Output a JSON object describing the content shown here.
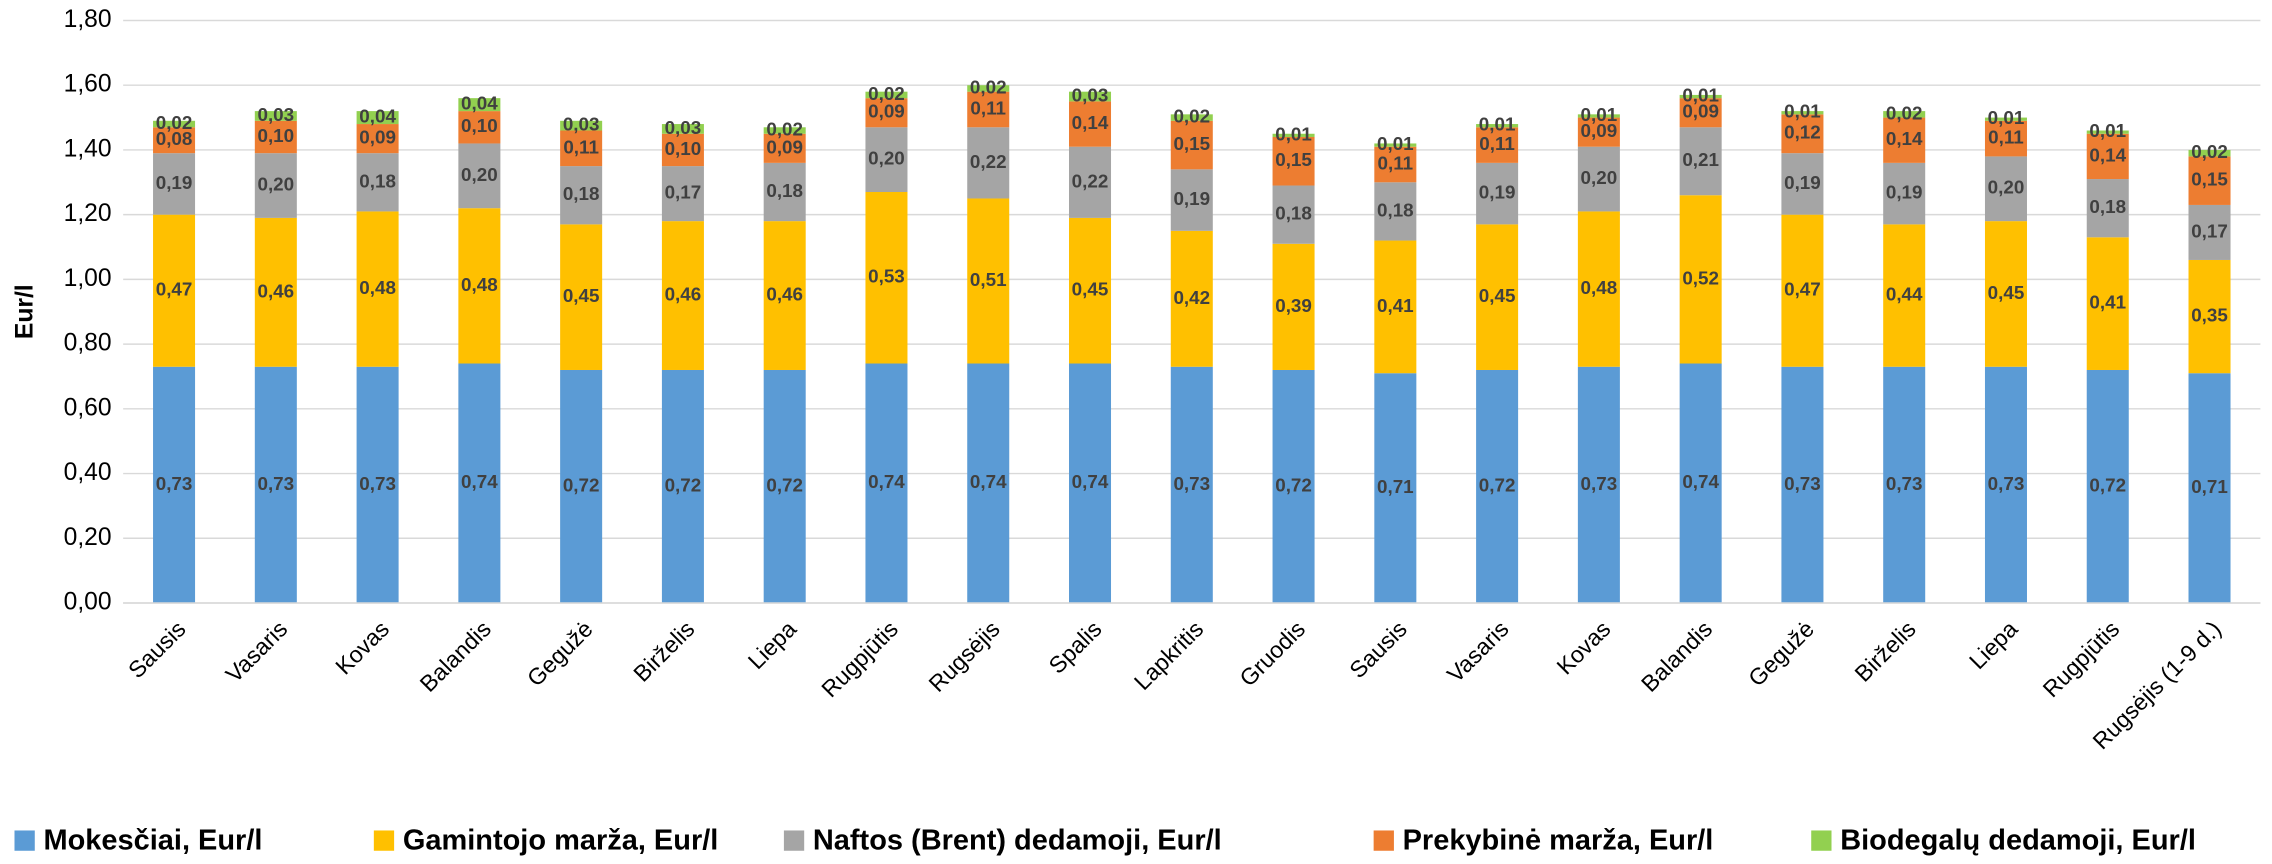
{
  "chart_data": {
    "type": "stacked-bar",
    "y_label": "Eur/l",
    "categories": [
      "Sausis",
      "Vasaris",
      "Kovas",
      "Balandis",
      "Gegužė",
      "Birželis",
      "Liepa",
      "Rugpjūtis",
      "Rugsėjis",
      "Spalis",
      "Lapkritis",
      "Gruodis",
      "Sausis",
      "Vasaris",
      "Kovas",
      "Balandis",
      "Gegužė",
      "Birželis",
      "Liepa",
      "Rugpjūtis",
      "Rugsėjis (1-9 d.)"
    ],
    "series": [
      {
        "name": "Mokesčiai, Eur/l",
        "color": "#5b9bd5",
        "values": [
          0.73,
          0.73,
          0.73,
          0.74,
          0.72,
          0.72,
          0.72,
          0.74,
          0.74,
          0.74,
          0.73,
          0.72,
          0.71,
          0.72,
          0.73,
          0.74,
          0.73,
          0.73,
          0.73,
          0.72,
          0.71
        ],
        "value_labels": [
          "0,73",
          "0,73",
          "0,73",
          "0,74",
          "0,72",
          "0,72",
          "0,72",
          "0,74",
          "0,74",
          "0,74",
          "0,73",
          "0,72",
          "0,71",
          "0,72",
          "0,73",
          "0,74",
          "0,73",
          "0,73",
          "0,73",
          "0,72",
          "0,71"
        ]
      },
      {
        "name": "Gamintojo marža, Eur/l",
        "color": "#ffc000",
        "values": [
          0.47,
          0.46,
          0.48,
          0.48,
          0.45,
          0.46,
          0.46,
          0.53,
          0.51,
          0.45,
          0.42,
          0.39,
          0.41,
          0.45,
          0.48,
          0.52,
          0.47,
          0.44,
          0.45,
          0.41,
          0.35
        ],
        "value_labels": [
          "0,47",
          "0,46",
          "0,48",
          "0,48",
          "0,45",
          "0,46",
          "0,46",
          "0,53",
          "0,51",
          "0,45",
          "0,42",
          "0,39",
          "0,41",
          "0,45",
          "0,48",
          "0,52",
          "0,47",
          "0,44",
          "0,45",
          "0,41",
          "0,35"
        ]
      },
      {
        "name": "Naftos (Brent) dedamoji, Eur/l",
        "color": "#a5a5a5",
        "values": [
          0.19,
          0.2,
          0.18,
          0.2,
          0.18,
          0.17,
          0.18,
          0.2,
          0.22,
          0.22,
          0.19,
          0.18,
          0.18,
          0.19,
          0.2,
          0.21,
          0.19,
          0.19,
          0.2,
          0.18,
          0.17
        ],
        "value_labels": [
          "0,19",
          "0,20",
          "0,18",
          "0,20",
          "0,18",
          "0,17",
          "0,18",
          "0,20",
          "0,22",
          "0,22",
          "0,19",
          "0,18",
          "0,18",
          "0,19",
          "0,20",
          "0,21",
          "0,19",
          "0,19",
          "0,20",
          "0,18",
          "0,17"
        ]
      },
      {
        "name": "Prekybinė marža, Eur/l",
        "color": "#ed7d31",
        "values": [
          0.08,
          0.1,
          0.09,
          0.1,
          0.11,
          0.1,
          0.09,
          0.09,
          0.11,
          0.14,
          0.15,
          0.15,
          0.11,
          0.11,
          0.09,
          0.09,
          0.12,
          0.14,
          0.11,
          0.14,
          0.15
        ],
        "value_labels": [
          "0,08",
          "0,10",
          "0,09",
          "0,10",
          "0,11",
          "0,10",
          "0,09",
          "0,09",
          "0,11",
          "0,14",
          "0,15",
          "0,15",
          "0,11",
          "0,11",
          "0,09",
          "0,09",
          "0,12",
          "0,14",
          "0,11",
          "0,14",
          "0,15"
        ]
      },
      {
        "name": "Biodegalų dedamoji, Eur/l",
        "color": "#92d050",
        "values": [
          0.02,
          0.03,
          0.04,
          0.04,
          0.03,
          0.03,
          0.02,
          0.02,
          0.02,
          0.03,
          0.02,
          0.01,
          0.01,
          0.01,
          0.01,
          0.01,
          0.01,
          0.02,
          0.01,
          0.01,
          0.02
        ],
        "value_labels": [
          "0,02",
          "0,03",
          "0,04",
          "0,04",
          "0,03",
          "0,03",
          "0,02",
          "0,02",
          "0,02",
          "0,03",
          "0,02",
          "0,01",
          "0,01",
          "0,01",
          "0,01",
          "0,01",
          "0,01",
          "0,02",
          "0,01",
          "0,01",
          "0,02"
        ]
      }
    ],
    "ylim": [
      0,
      1.8
    ],
    "yticks": [
      {
        "value": 0,
        "label": "0,00"
      },
      {
        "value": 0.2,
        "label": "0,20"
      },
      {
        "value": 0.4,
        "label": "0,40"
      },
      {
        "value": 0.6,
        "label": "0,60"
      },
      {
        "value": 0.8,
        "label": "0,80"
      },
      {
        "value": 1,
        "label": "1,00"
      },
      {
        "value": 1.2,
        "label": "1,20"
      },
      {
        "value": 1.4,
        "label": "1,40"
      },
      {
        "value": 1.6,
        "label": "1,60"
      },
      {
        "value": 1.8,
        "label": "1,80"
      }
    ],
    "grid": true,
    "legend": "bottom"
  }
}
